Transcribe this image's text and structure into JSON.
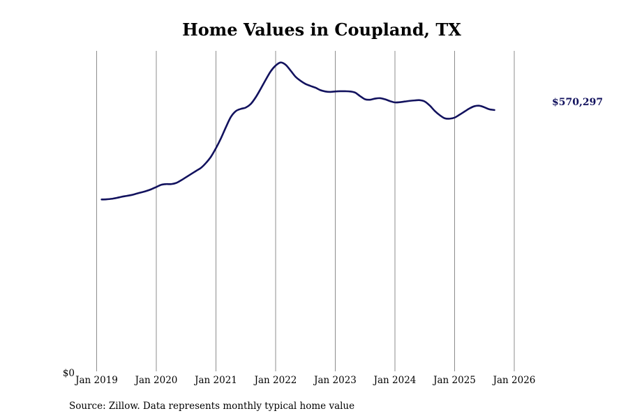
{
  "colors": {
    "line": "#12125e",
    "grid": "#8c8c8c",
    "text": "#000000"
  },
  "source": "Source: Zillow. Data represents monthly typical home value",
  "chart_data": {
    "type": "line",
    "title": "Home Values in Coupland, TX",
    "xlabel": "",
    "ylabel": "",
    "x_tick_labels": [
      "Jan 2019",
      "Jan 2020",
      "Jan 2021",
      "Jan 2022",
      "Jan 2023",
      "Jan 2024",
      "Jan 2025",
      "Jan 2026"
    ],
    "y_tick_labels": [
      "$0"
    ],
    "ylim": [
      0,
      718000
    ],
    "grid": "vertical",
    "x_start": "2019-02",
    "x_end": "2026-07",
    "end_label": "$570,297",
    "values": [
      385000,
      385500,
      386500,
      388500,
      391000,
      393000,
      395000,
      398000,
      401000,
      404000,
      408000,
      413000,
      418000,
      419500,
      419500,
      422000,
      428000,
      435000,
      442000,
      449000,
      456000,
      467000,
      481000,
      500000,
      522000,
      547000,
      570000,
      583000,
      588000,
      591000,
      599000,
      614000,
      633000,
      653000,
      672000,
      685000,
      692000,
      687000,
      674000,
      660000,
      651000,
      644000,
      639500,
      635500,
      630000,
      627000,
      626000,
      627000,
      627500,
      627500,
      627000,
      624500,
      616500,
      609500,
      608500,
      611000,
      612000,
      609500,
      605500,
      602500,
      603000,
      604500,
      606000,
      607000,
      607500,
      604500,
      595500,
      583500,
      574000,
      567000,
      566000,
      568500,
      575000,
      582000,
      589000,
      594000,
      595000,
      591500,
      587000,
      585500
    ]
  }
}
